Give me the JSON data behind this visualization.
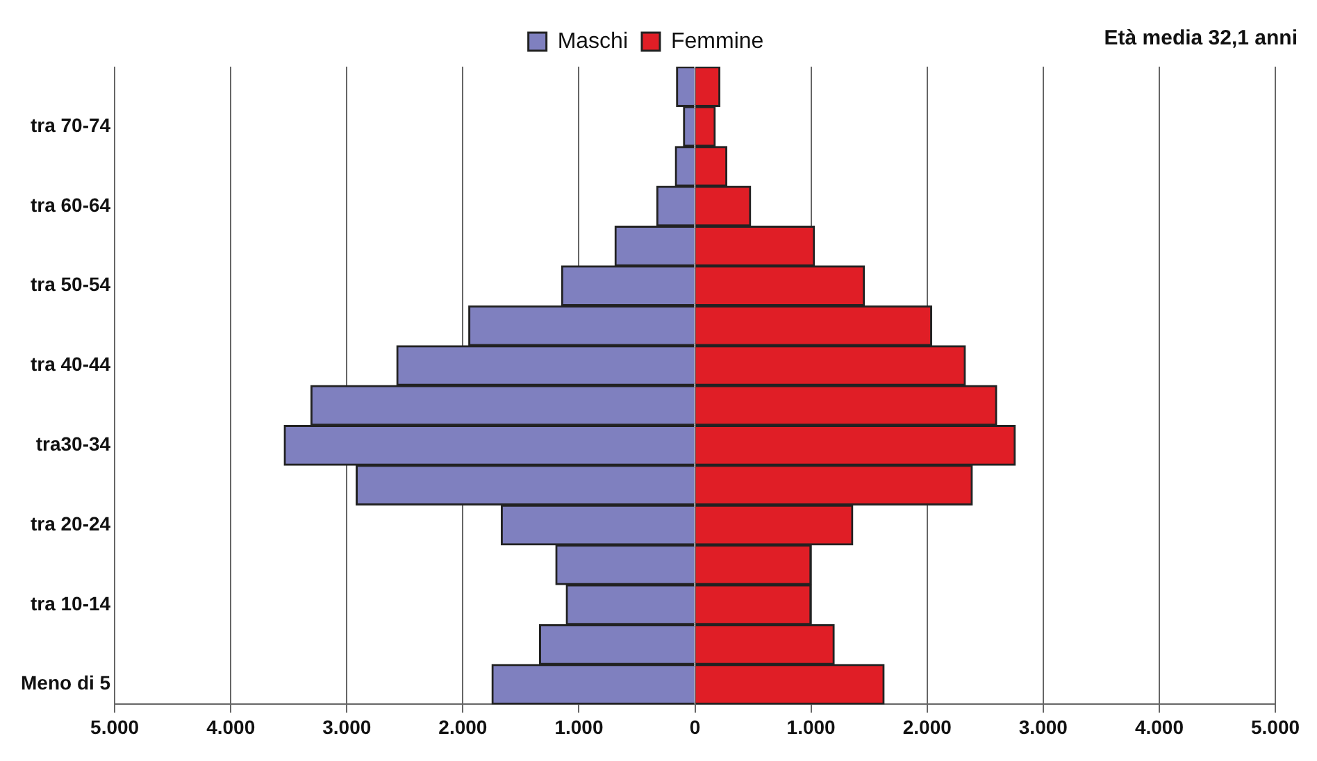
{
  "chart_data": {
    "type": "bar",
    "orientation": "horizontal",
    "stacked": true,
    "categories": [
      null,
      "tra 70-74",
      null,
      "tra 60-64",
      null,
      "tra 50-54",
      null,
      "tra 40-44",
      null,
      "tra30-34",
      null,
      "tra 20-24",
      null,
      "tra 10-14",
      null,
      "Meno di 5"
    ],
    "series": [
      {
        "name": "Maschi",
        "color": "#7f80bf",
        "values": [
          -160,
          -100,
          -170,
          -330,
          -690,
          -1150,
          -1950,
          -2570,
          -3310,
          -3540,
          -2920,
          -1670,
          -1200,
          -1110,
          -1340,
          -1750
        ]
      },
      {
        "name": "Femmine",
        "color": "#e01e26",
        "values": [
          215,
          175,
          275,
          480,
          1030,
          1460,
          2040,
          2330,
          2600,
          2760,
          2390,
          1360,
          1000,
          1000,
          1200,
          1630
        ]
      }
    ],
    "xlim": [
      -5000,
      5000
    ],
    "xticks": [
      {
        "value": -5000,
        "label": "5.000"
      },
      {
        "value": -4000,
        "label": "4.000"
      },
      {
        "value": -3000,
        "label": "3.000"
      },
      {
        "value": -2000,
        "label": "2.000"
      },
      {
        "value": -1000,
        "label": "1.000"
      },
      0,
      {
        "value": 1000,
        "label": "1.000"
      },
      {
        "value": 2000,
        "label": "2.000"
      },
      {
        "value": 3000,
        "label": "3.000"
      },
      {
        "value": 4000,
        "label": "4.000"
      },
      {
        "value": 5000,
        "label": "5.000"
      }
    ],
    "grid": "x",
    "legend": "top",
    "annotations": [
      "Età media 32,1 anni"
    ]
  }
}
